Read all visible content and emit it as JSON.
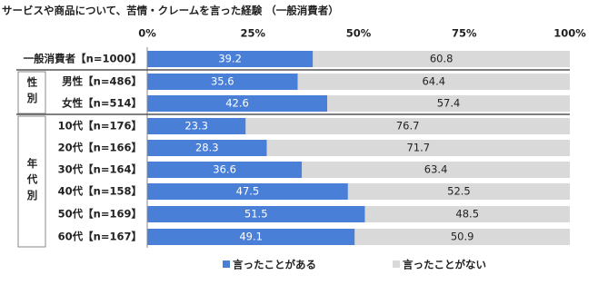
{
  "chart_data": {
    "type": "stacked_barh",
    "title": "サービスや商品について、苦情・クレームを言った経験 （一般消費者）",
    "categories": [
      "一般消費者【n=1000】",
      "男性【n=486】",
      "女性【n=514】",
      "10代【n=176】",
      "20代【n=166】",
      "30代【n=164】",
      "40代【n=158】",
      "50代【n=169】",
      "60代【n=167】"
    ],
    "category_groups": [
      null,
      "性別",
      "性別",
      "年代別",
      "年代別",
      "年代別",
      "年代別",
      "年代別",
      "年代別"
    ],
    "series": [
      {
        "name": "言ったことがある",
        "color": "#4a7fd8",
        "values": [
          39.2,
          35.6,
          42.6,
          23.3,
          28.3,
          36.6,
          47.5,
          51.5,
          49.1
        ]
      },
      {
        "name": "言ったことがない",
        "color": "#d9d9d9",
        "values": [
          60.8,
          64.4,
          57.4,
          76.7,
          71.7,
          63.4,
          52.5,
          48.5,
          50.9
        ]
      }
    ],
    "xlim": [
      0,
      100
    ],
    "xticks": [
      {
        "value": 0,
        "label": "0%"
      },
      {
        "value": 25,
        "label": "25%"
      },
      {
        "value": 50,
        "label": "50%"
      },
      {
        "value": 75,
        "label": "75%"
      },
      {
        "value": 100,
        "label": "100%"
      }
    ],
    "legend": "bottom"
  }
}
